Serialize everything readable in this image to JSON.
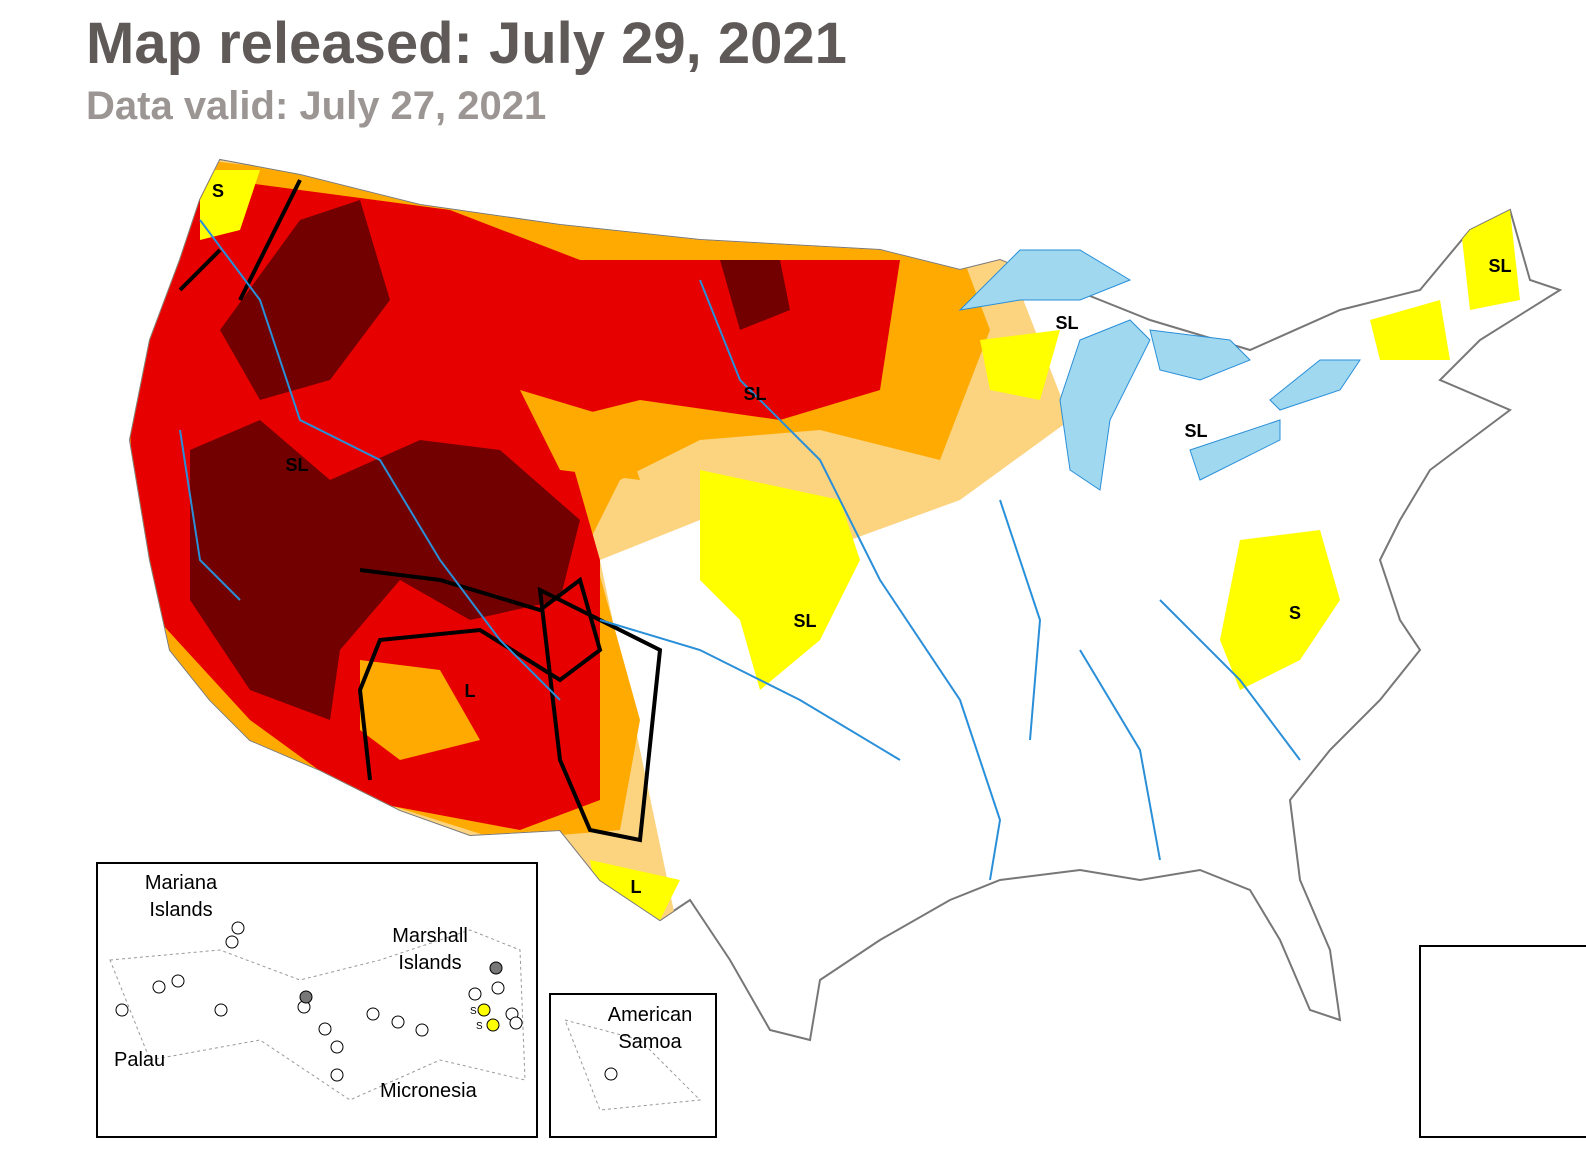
{
  "header": {
    "title": "Map released: July 29, 2021",
    "subtitle": "Data valid: July 27, 2021"
  },
  "map_labels": [
    "S",
    "SL",
    "SL",
    "SL",
    "SL",
    "SL",
    "SL",
    "S",
    "L",
    "L"
  ],
  "insets": {
    "pacific": {
      "labels": [
        "Mariana Islands",
        "Marshall Islands",
        "Palau",
        "Micronesia"
      ],
      "markers": [
        "S",
        "S"
      ]
    },
    "samoa": {
      "label": "American Samoa"
    }
  }
}
